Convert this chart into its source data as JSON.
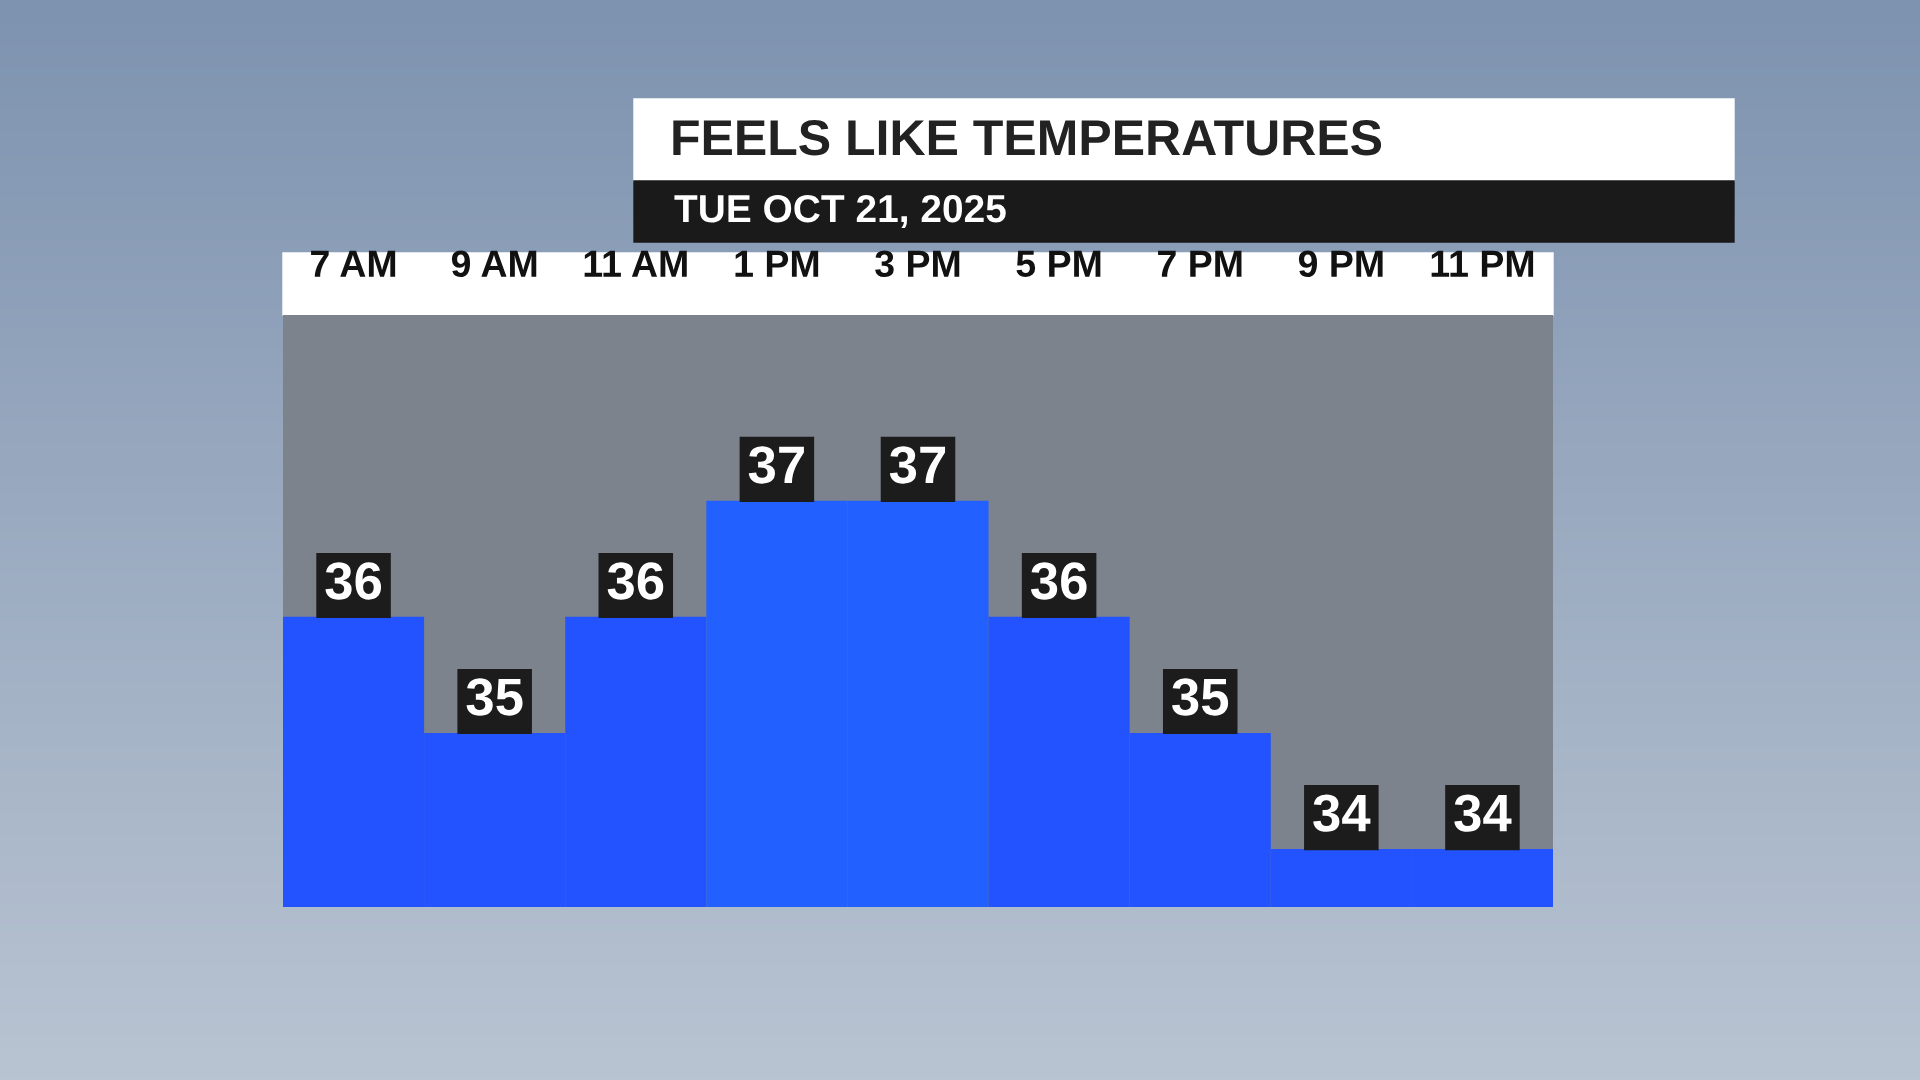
{
  "chart_data": {
    "type": "bar",
    "title": "FEELS LIKE TEMPERATURES",
    "subtitle": "TUE OCT 21, 2025",
    "categories": [
      "7 AM",
      "9 AM",
      "11 AM",
      "1 PM",
      "3 PM",
      "5 PM",
      "7 PM",
      "9 PM",
      "11 PM"
    ],
    "values": [
      36,
      35,
      36,
      37,
      37,
      36,
      35,
      34,
      34
    ],
    "colors": [
      "#2253ff",
      "#2253ff",
      "#2253ff",
      "#2260ff",
      "#2260ff",
      "#2253ff",
      "#2253ff",
      "#2253ff",
      "#2253ff"
    ],
    "ylim": [
      33.5,
      38.6
    ],
    "data_labels": true,
    "grid": false,
    "legend": false
  }
}
